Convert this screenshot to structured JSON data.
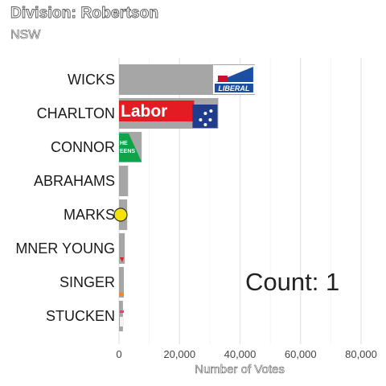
{
  "title": "Division: Robertson",
  "subtitle": "NSW",
  "count_label": "Count:  1",
  "chart_data": {
    "type": "bar",
    "orientation": "horizontal",
    "title": "Division: Robertson",
    "subtitle": "NSW",
    "xlabel": "Number of Votes",
    "ylabel": "",
    "xlim": [
      0,
      80000
    ],
    "x_ticks": [
      0,
      20000,
      40000,
      60000,
      80000
    ],
    "x_tick_labels": [
      "0",
      "20,000",
      "40,000",
      "60,000",
      "80,000"
    ],
    "grid": true,
    "bar_color": "#a6a6a6",
    "categories": [
      "WICKS",
      "CHARLTON",
      "CONNOR",
      "ABRAHAMS",
      "MARKS",
      "MNER YOUNG",
      "SINGER",
      "STUCKEN"
    ],
    "values": [
      44900,
      32800,
      7500,
      3000,
      2700,
      1900,
      1600,
      1300
    ],
    "party_logos": [
      "liberal-logo",
      "labor-logo",
      "greens-logo",
      "",
      "yellow-party-logo",
      "red-party-logo",
      "orange-party-logo",
      "pink-party-logo"
    ],
    "logo_text": {
      "labor": "Labor",
      "liberal": "LIBERAL",
      "greens": "HE\nEENS"
    }
  }
}
